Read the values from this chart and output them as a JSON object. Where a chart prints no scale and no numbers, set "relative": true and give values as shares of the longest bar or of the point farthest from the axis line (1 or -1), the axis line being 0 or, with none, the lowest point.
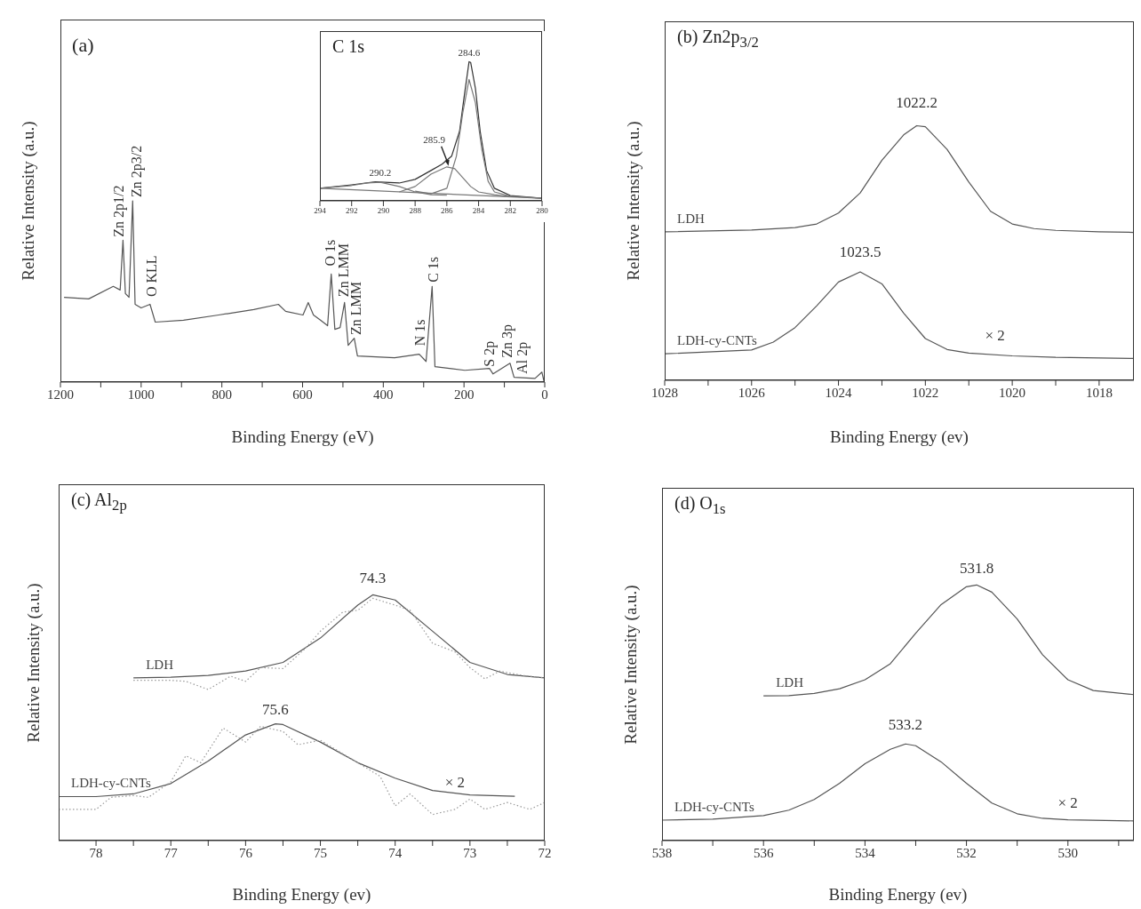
{
  "chart_data": [
    {
      "type": "line",
      "xlabel": "Binding Energy (eV)",
      "ylabel": "Relative Intensity (a.u.)",
      "relative": true,
      "xlim": [
        1200,
        0
      ],
      "xticks": [
        1200,
        {
          "value": 1100,
          "label": null
        },
        1000,
        {
          "value": 900,
          "label": null
        },
        800,
        {
          "value": 700,
          "label": null
        },
        600,
        {
          "value": 500,
          "label": null
        },
        400,
        {
          "value": 300,
          "label": null
        },
        200,
        {
          "value": 100,
          "label": null
        },
        0
      ],
      "series": [
        {
          "color": "#555555",
          "x": [
            1191,
            1130,
            1069,
            1052,
            1045,
            1039,
            1030,
            1021,
            1015,
            1000,
            978,
            965,
            895,
            808,
            721,
            660,
            642,
            599,
            586,
            573,
            555,
            538,
            529,
            520,
            507,
            496,
            487,
            472,
            464,
            372,
            311,
            294,
            279,
            272,
            198,
            137,
            128,
            86,
            76,
            24,
            7,
            2
          ],
          "values": [
            0.468,
            0.459,
            0.528,
            0.508,
            0.783,
            0.488,
            0.468,
            1.0,
            0.429,
            0.409,
            0.429,
            0.331,
            0.341,
            0.37,
            0.4,
            0.429,
            0.39,
            0.37,
            0.439,
            0.37,
            0.341,
            0.311,
            0.596,
            0.291,
            0.301,
            0.439,
            0.203,
            0.242,
            0.144,
            0.134,
            0.154,
            0.114,
            0.528,
            0.085,
            0.065,
            0.075,
            0.045,
            0.104,
            0.026,
            0.02,
            0.055,
            0.006
          ]
        }
      ],
      "annotations": [
        "(a)",
        "Zn 2p1/2",
        "Zn 2p3/2",
        "O KLL",
        "O 1s",
        "Zn LMM",
        "Zn LMM",
        "N 1s",
        "C 1s",
        "S 2p",
        "Zn 3p",
        "Al 2p"
      ]
    },
    {
      "type": "line",
      "title": "C 1s",
      "relative": true,
      "xlim": [
        294,
        280
      ],
      "xticks": [
        294,
        292,
        290,
        288,
        286,
        284,
        282,
        280
      ],
      "series": [
        {
          "color": "#333333",
          "x": [
            294,
            292,
            290.5,
            289,
            288,
            287,
            286.3,
            285.7,
            285.2,
            284.9,
            284.6,
            284.5,
            284.2,
            283.9,
            283.5,
            283,
            282,
            280
          ],
          "values": [
            0.09,
            0.115,
            0.136,
            0.128,
            0.154,
            0.218,
            0.264,
            0.321,
            0.5,
            0.756,
            1.0,
            0.995,
            0.808,
            0.5,
            0.218,
            0.09,
            0.038,
            0.018
          ]
        },
        {
          "color": "#777777",
          "x": [
            288,
            287,
            286,
            285.4,
            285,
            284.6,
            284.2,
            283.8,
            283.4,
            283,
            282,
            280
          ],
          "values": [
            0.07,
            0.05,
            0.09,
            0.32,
            0.63,
            0.872,
            0.705,
            0.372,
            0.141,
            0.064,
            0.033,
            0.018
          ]
        },
        {
          "color": "#777777",
          "x": [
            289,
            288,
            287,
            286,
            285.5,
            285,
            284.5,
            284,
            283,
            282
          ],
          "values": [
            0.064,
            0.103,
            0.192,
            0.244,
            0.231,
            0.167,
            0.103,
            0.064,
            0.044,
            0.03
          ]
        },
        {
          "color": "#777777",
          "x": [
            294,
            292,
            291,
            290.2,
            289,
            288,
            287,
            286
          ],
          "values": [
            0.09,
            0.11,
            0.128,
            0.133,
            0.103,
            0.064,
            0.044,
            0.04
          ]
        },
        {
          "color": "#777777",
          "x": [
            294,
            280
          ],
          "values": [
            0.09,
            0.018
          ]
        }
      ],
      "annotations": [
        "284.6",
        "285.9",
        "290.2"
      ]
    },
    {
      "type": "line",
      "title": "(b) Zn2p$_{3/2}$",
      "xlabel": "Binding Energy (ev)",
      "ylabel": "Relative Intensity (a.u.)",
      "relative": true,
      "xlim": [
        1028,
        1017.2
      ],
      "xticks": [
        1028,
        {
          "value": 1027,
          "label": null
        },
        1026,
        {
          "value": 1025,
          "label": null
        },
        1024,
        {
          "value": 1023,
          "label": null
        },
        1022,
        {
          "value": 1021,
          "label": null
        },
        1020,
        {
          "value": 1019,
          "label": null
        },
        1018
      ],
      "series": [
        {
          "name": "LDH",
          "color": "#555555",
          "x": [
            1028,
            1026,
            1025,
            1024.5,
            1024,
            1023.5,
            1023,
            1022.5,
            1022.2,
            1022,
            1021.5,
            1021,
            1020.5,
            1020,
            1019.5,
            1019,
            1018,
            1017.2
          ],
          "values": [
            0.583,
            0.59,
            0.6,
            0.614,
            0.657,
            0.736,
            0.864,
            0.964,
            1.0,
            0.996,
            0.907,
            0.779,
            0.664,
            0.614,
            0.596,
            0.589,
            0.583,
            0.581
          ]
        },
        {
          "name": "LDH-cy-CNTs",
          "color": "#555555",
          "x": [
            1028,
            1026,
            1025.5,
            1025,
            1024.5,
            1024,
            1023.5,
            1023,
            1022.5,
            1022,
            1021.5,
            1021,
            1020,
            1019,
            1017.2
          ],
          "values": [
            0.104,
            0.119,
            0.15,
            0.207,
            0.293,
            0.386,
            0.426,
            0.379,
            0.264,
            0.164,
            0.121,
            0.107,
            0.096,
            0.09,
            0.086
          ]
        }
      ],
      "annotations": [
        "1022.2",
        "1023.5",
        "× 2"
      ]
    },
    {
      "type": "line",
      "title": "(c) Al$_{2p}$",
      "xlabel": "Binding Energy (ev)",
      "ylabel": "Relative Intensity (a.u.)",
      "relative": true,
      "xlim": [
        78.5,
        72
      ],
      "xticks": [
        78,
        {
          "value": 77.5,
          "label": null
        },
        77,
        {
          "value": 76.5,
          "label": null
        },
        76,
        {
          "value": 75.5,
          "label": null
        },
        75,
        {
          "value": 74.5,
          "label": null
        },
        74,
        {
          "value": 73.5,
          "label": null
        },
        73,
        {
          "value": 72.5,
          "label": null
        },
        72
      ],
      "series": [
        {
          "name": "LDH",
          "color": "#555555",
          "x": [
            77.5,
            77,
            76.5,
            76,
            75.5,
            75,
            74.5,
            74.3,
            74,
            73.5,
            73,
            72.5,
            72
          ],
          "values": [
            0.662,
            0.665,
            0.672,
            0.69,
            0.725,
            0.824,
            0.958,
            1.0,
            0.979,
            0.852,
            0.725,
            0.676,
            0.662
          ]
        },
        {
          "color": "#9a9a9a",
          "line_style": "dotted",
          "x": [
            77.5,
            77,
            76.8,
            76.5,
            76.2,
            76,
            75.8,
            75.5,
            75.2,
            75,
            74.7,
            74.5,
            74.3,
            74,
            73.8,
            73.5,
            73.2,
            73,
            72.8,
            72.6,
            72.3,
            72
          ],
          "values": [
            0.652,
            0.652,
            0.648,
            0.615,
            0.669,
            0.648,
            0.704,
            0.7,
            0.782,
            0.852,
            0.93,
            0.937,
            0.986,
            0.958,
            0.937,
            0.803,
            0.768,
            0.704,
            0.658,
            0.69,
            0.672,
            0.662
          ]
        },
        {
          "name": "LDH-cy-CNTs",
          "color": "#555555",
          "x": [
            78.5,
            78,
            77.5,
            77,
            76.5,
            76,
            75.6,
            75.5,
            75,
            74.5,
            74,
            73.5,
            73,
            72.4
          ],
          "values": [
            0.179,
            0.179,
            0.19,
            0.232,
            0.324,
            0.43,
            0.475,
            0.472,
            0.401,
            0.317,
            0.254,
            0.204,
            0.186,
            0.18
          ]
        },
        {
          "color": "#9a9a9a",
          "line_style": "dotted",
          "x": [
            78.5,
            78,
            77.8,
            77.5,
            77.3,
            77,
            76.8,
            76.6,
            76.3,
            76,
            75.8,
            75.5,
            75.3,
            75,
            74.5,
            74.2,
            74,
            73.8,
            73.5,
            73.2,
            73,
            72.8,
            72.5,
            72.2,
            72
          ],
          "values": [
            0.127,
            0.127,
            0.176,
            0.183,
            0.176,
            0.239,
            0.345,
            0.317,
            0.458,
            0.401,
            0.465,
            0.444,
            0.39,
            0.408,
            0.317,
            0.261,
            0.141,
            0.19,
            0.106,
            0.127,
            0.169,
            0.127,
            0.155,
            0.127,
            0.155
          ]
        }
      ],
      "annotations": [
        "74.3",
        "75.6",
        "× 2"
      ]
    },
    {
      "type": "line",
      "title": "(d) O$_{1s}$",
      "xlabel": "Binding Energy (ev)",
      "ylabel": "Relative Intensity (a.u.)",
      "relative": true,
      "xlim": [
        538,
        528.7
      ],
      "xticks": [
        538,
        {
          "value": 537,
          "label": null
        },
        536,
        {
          "value": 535,
          "label": null
        },
        534,
        {
          "value": 533,
          "label": null
        },
        532,
        {
          "value": 531,
          "label": null
        },
        530,
        {
          "value": 529,
          "label": null
        }
      ],
      "series": [
        {
          "name": "LDH",
          "color": "#555555",
          "x": [
            536,
            535.5,
            535,
            534.5,
            534,
            533.5,
            533,
            532.5,
            532,
            531.8,
            531.5,
            531,
            530.5,
            530,
            529.5,
            528.7
          ],
          "values": [
            0.566,
            0.567,
            0.576,
            0.594,
            0.629,
            0.692,
            0.811,
            0.923,
            0.993,
            1.0,
            0.972,
            0.867,
            0.727,
            0.629,
            0.587,
            0.571
          ]
        },
        {
          "name": "LDH-cy-CNTs",
          "color": "#555555",
          "x": [
            538,
            537,
            536,
            535.5,
            535,
            534.5,
            534,
            533.5,
            533.2,
            533,
            532.5,
            532,
            531.5,
            531,
            530.5,
            530,
            528.7
          ],
          "values": [
            0.08,
            0.084,
            0.098,
            0.119,
            0.161,
            0.224,
            0.301,
            0.357,
            0.378,
            0.371,
            0.308,
            0.224,
            0.147,
            0.105,
            0.087,
            0.081,
            0.077
          ]
        }
      ],
      "annotations": [
        "531.8",
        "533.2",
        "× 2"
      ]
    }
  ]
}
